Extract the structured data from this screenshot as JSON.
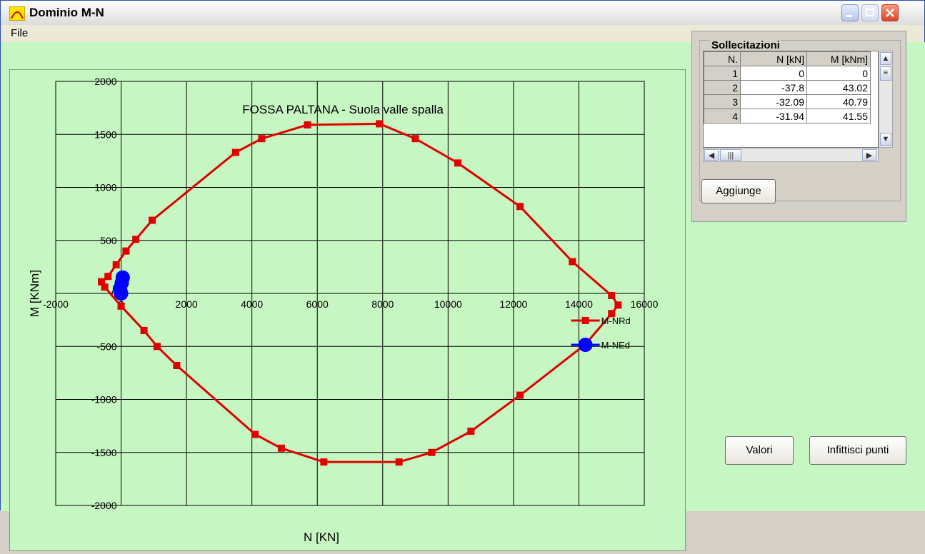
{
  "window": {
    "title": "Dominio M-N",
    "menu": {
      "file": "File"
    }
  },
  "panel": {
    "group_title": "Sollecitazioni",
    "columns": [
      "N.",
      "N [kN]",
      "M [kNm]"
    ],
    "rows": [
      [
        "1",
        "0",
        "0"
      ],
      [
        "2",
        "-37.8",
        "43.02"
      ],
      [
        "3",
        "-32.09",
        "40.79"
      ],
      [
        "4",
        "-31.94",
        "41.55"
      ]
    ],
    "add_button": "Aggiunge",
    "values_button": "Valori",
    "densify_button": "Infittisci punti"
  },
  "chart_data": {
    "type": "scatter",
    "title": "FOSSA PALTANA - Suola valle spalla",
    "xlabel": "N [KN]",
    "ylabel": "M [KNm]",
    "xlim": [
      -2000,
      16000
    ],
    "ylim": [
      -2000,
      2000
    ],
    "x_ticks": [
      -2000,
      0,
      2000,
      4000,
      6000,
      8000,
      10000,
      12000,
      14000,
      16000
    ],
    "y_ticks": [
      2000,
      1500,
      1000,
      500,
      0,
      -500,
      -1000,
      -1500,
      -2000
    ],
    "x_tick_labels": [
      "-2000",
      "0",
      "2000",
      "4000",
      "6000",
      "8000",
      "10000",
      "12000",
      "14000",
      "16000"
    ],
    "y_tick_labels": [
      "2000",
      "1500",
      "1000",
      "500",
      "0",
      "-500",
      "-1000",
      "-1500",
      "-2000"
    ],
    "grid": true,
    "legend": "right",
    "series": [
      {
        "name": "M-NRd",
        "color": "#e00000",
        "marker": "square",
        "points": [
          [
            -600,
            110
          ],
          [
            -400,
            160
          ],
          [
            -150,
            270
          ],
          [
            150,
            400
          ],
          [
            450,
            510
          ],
          [
            950,
            690
          ],
          [
            3500,
            1330
          ],
          [
            4300,
            1460
          ],
          [
            5700,
            1590
          ],
          [
            7900,
            1600
          ],
          [
            9000,
            1460
          ],
          [
            10300,
            1230
          ],
          [
            12200,
            820
          ],
          [
            13800,
            300
          ],
          [
            15000,
            -20
          ],
          [
            15200,
            -110
          ],
          [
            15000,
            -190
          ],
          [
            14200,
            -480
          ],
          [
            12200,
            -960
          ],
          [
            10700,
            -1300
          ],
          [
            9500,
            -1500
          ],
          [
            8500,
            -1590
          ],
          [
            6200,
            -1590
          ],
          [
            4900,
            -1460
          ],
          [
            4100,
            -1330
          ],
          [
            1700,
            -680
          ],
          [
            1100,
            -500
          ],
          [
            700,
            -350
          ],
          [
            0,
            -120
          ],
          [
            -500,
            60
          ],
          [
            -600,
            110
          ]
        ]
      },
      {
        "name": "M-NEd",
        "color": "#0000ff",
        "marker": "circle",
        "points": [
          [
            0,
            0
          ],
          [
            -37.8,
            43.02
          ],
          [
            -32.09,
            40.79
          ],
          [
            -31.94,
            41.55
          ],
          [
            50,
            150
          ],
          [
            20,
            100
          ]
        ]
      }
    ],
    "legend_entries": [
      "M-NRd",
      "M-NEd"
    ]
  }
}
